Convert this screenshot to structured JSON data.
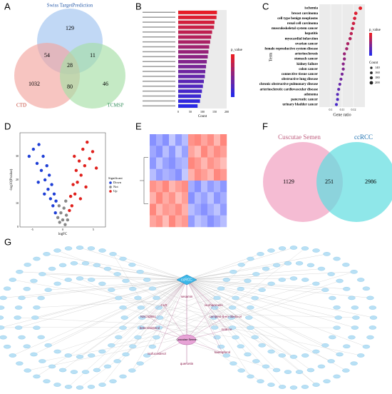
{
  "panels": {
    "A": {
      "label": "A",
      "sets": [
        "Swiss TargetPrediction",
        "CTD",
        "TCMSP"
      ],
      "counts": {
        "swiss_only": 129,
        "swiss_ctd": 54,
        "swiss_tcmsp": 11,
        "all": 28,
        "ctd_only": 1032,
        "ctd_tcmsp": 80,
        "tcmsp_only": 46
      }
    },
    "B": {
      "label": "B",
      "type": "bar",
      "xlabel": "Count",
      "legend_title": "p_value",
      "values": [
        160,
        158,
        150,
        148,
        140,
        136,
        132,
        128,
        125,
        122,
        118,
        115,
        112,
        110,
        106,
        102,
        98,
        94,
        90,
        80
      ],
      "xlim": [
        0,
        200
      ],
      "xticks": [
        0,
        50,
        100,
        150,
        200
      ]
    },
    "C": {
      "label": "C",
      "type": "scatter",
      "xlabel": "Gene ratio",
      "ylabel": "Term",
      "legend_title": "p_value",
      "size_title": "Count",
      "terms": [
        "ischemia",
        "breast carcinoma",
        "cell type benign neoplasms",
        "renal cell carcinoma",
        "musculoskeletal system cancer",
        "hepatitis",
        "myocardial infarction",
        "ovarian cancer",
        "female reproductive system disease",
        "arteriosclerosis",
        "stomach cancer",
        "kidney failure",
        "colon cancer",
        "connective tissue cancer",
        "obstructive lung disease",
        "chronic obstructive pulmonary disease",
        "arteriosclerotic cardiovascular disease",
        "adenoma",
        "pancreatic cancer",
        "urinary bladder cancer"
      ],
      "gene_ratio": [
        0.126,
        0.122,
        0.121,
        0.12,
        0.119,
        0.118,
        0.117,
        0.115,
        0.114,
        0.112,
        0.112,
        0.111,
        0.111,
        0.11,
        0.109,
        0.108,
        0.107,
        0.106,
        0.106,
        0.105
      ],
      "count": [
        205,
        198,
        196,
        194,
        192,
        190,
        188,
        185,
        183,
        180,
        180,
        178,
        178,
        176,
        175,
        173,
        171,
        170,
        170,
        168
      ],
      "xlim": [
        0.09,
        0.13
      ],
      "xticks": [
        0.1,
        0.11,
        0.12
      ],
      "size_ticks": [
        140,
        160,
        180,
        200
      ]
    },
    "D": {
      "label": "D",
      "type": "scatter",
      "xlabel": "logFC",
      "ylabel": "-log10(P.value)",
      "legend_title": "Significant",
      "groups": [
        "Down",
        "Not",
        "Up"
      ],
      "colors": [
        "#1f3fd6",
        "#888888",
        "#e0201c"
      ],
      "xlim": [
        -7,
        7
      ],
      "ylim": [
        0,
        40
      ],
      "xticks": [
        -5,
        0,
        5
      ],
      "yticks": [
        0,
        10,
        20,
        30
      ],
      "points": [
        [
          -5.5,
          30,
          0
        ],
        [
          -4.8,
          33,
          0
        ],
        [
          -4.2,
          27,
          0
        ],
        [
          -3.9,
          35,
          0
        ],
        [
          -3.5,
          24,
          0
        ],
        [
          -3.2,
          30,
          0
        ],
        [
          -2.9,
          20,
          0
        ],
        [
          -2.6,
          26,
          0
        ],
        [
          -2.4,
          16,
          0
        ],
        [
          -2.2,
          22,
          0
        ],
        [
          -2,
          12,
          0
        ],
        [
          -1.8,
          18,
          0
        ],
        [
          -1.6,
          9,
          0
        ],
        [
          -1.4,
          14,
          0
        ],
        [
          -1.2,
          6,
          0
        ],
        [
          -1.1,
          11,
          0
        ],
        [
          -3,
          14,
          0
        ],
        [
          -4,
          19,
          0
        ],
        [
          -0.8,
          4,
          1
        ],
        [
          -0.5,
          2,
          1
        ],
        [
          -0.3,
          6,
          1
        ],
        [
          0,
          3,
          1
        ],
        [
          0.2,
          8,
          1
        ],
        [
          0.4,
          1,
          1
        ],
        [
          0.6,
          5,
          1
        ],
        [
          0.8,
          3,
          1
        ],
        [
          -0.6,
          9,
          1
        ],
        [
          0.5,
          11,
          1
        ],
        [
          1.1,
          7,
          2
        ],
        [
          1.3,
          13,
          2
        ],
        [
          1.5,
          9,
          2
        ],
        [
          1.7,
          18,
          2
        ],
        [
          2,
          14,
          2
        ],
        [
          2.2,
          24,
          2
        ],
        [
          2.4,
          19,
          2
        ],
        [
          2.7,
          28,
          2
        ],
        [
          3,
          22,
          2
        ],
        [
          3.3,
          33,
          2
        ],
        [
          3.6,
          26,
          2
        ],
        [
          4,
          36,
          2
        ],
        [
          4.4,
          29,
          2
        ],
        [
          4.9,
          32,
          2
        ],
        [
          5.5,
          25,
          2
        ],
        [
          2.9,
          12,
          2
        ],
        [
          3.8,
          17,
          2
        ],
        [
          1.9,
          30,
          2
        ]
      ]
    },
    "E": {
      "label": "E",
      "type": "heatmap",
      "values": [
        [
          -2,
          -1.5,
          -2,
          -1,
          -1.8,
          -1.2,
          1.8,
          2,
          1.5,
          1.9,
          1.2,
          2
        ],
        [
          -1.6,
          -2,
          -1.2,
          -1.9,
          -1,
          -1.7,
          1.5,
          1.1,
          2,
          1.4,
          1.9,
          1.6
        ],
        [
          -1.9,
          -1.1,
          -1.7,
          -2,
          -1.5,
          -1.3,
          2,
          1.7,
          1.2,
          1.8,
          1.5,
          1.1
        ],
        [
          -1.2,
          -1.8,
          -1.4,
          -1.6,
          -2,
          -1,
          1.3,
          1.9,
          1.6,
          1.2,
          2,
          1.7
        ],
        [
          1.8,
          1.5,
          2,
          1.2,
          1.6,
          1.9,
          -1.5,
          -2,
          -1.2,
          -1.8,
          -1.4,
          -1.9
        ],
        [
          1.3,
          2,
          1.4,
          1.8,
          1.1,
          1.6,
          -2,
          -1.3,
          -1.7,
          -1.1,
          -1.9,
          -1.5
        ],
        [
          2,
          1.2,
          1.7,
          1.5,
          1.9,
          1.3,
          -1.2,
          -1.6,
          -2,
          -1.5,
          -1.1,
          -1.8
        ],
        [
          1.5,
          1.8,
          1.1,
          2,
          1.4,
          1.7,
          -1.8,
          -1.1,
          -1.4,
          -2,
          -1.6,
          -1.2
        ]
      ]
    },
    "F": {
      "label": "F",
      "sets": [
        "Cuscutae Semen",
        "ccRCC"
      ],
      "counts": {
        "left": 1129,
        "both": 251,
        "right": 2986
      }
    },
    "G": {
      "label": "G",
      "target": "ccRCC",
      "herb": "Cuscutae Semen",
      "ingredients": [
        "sesamin",
        "CLR",
        "isorhamnetin",
        "NSC63551",
        "campest-5-en-3beta-ol",
        "beta-sitosterol",
        "matrine",
        "isofucosterol",
        "kaempferol",
        "quercetin"
      ]
    }
  }
}
